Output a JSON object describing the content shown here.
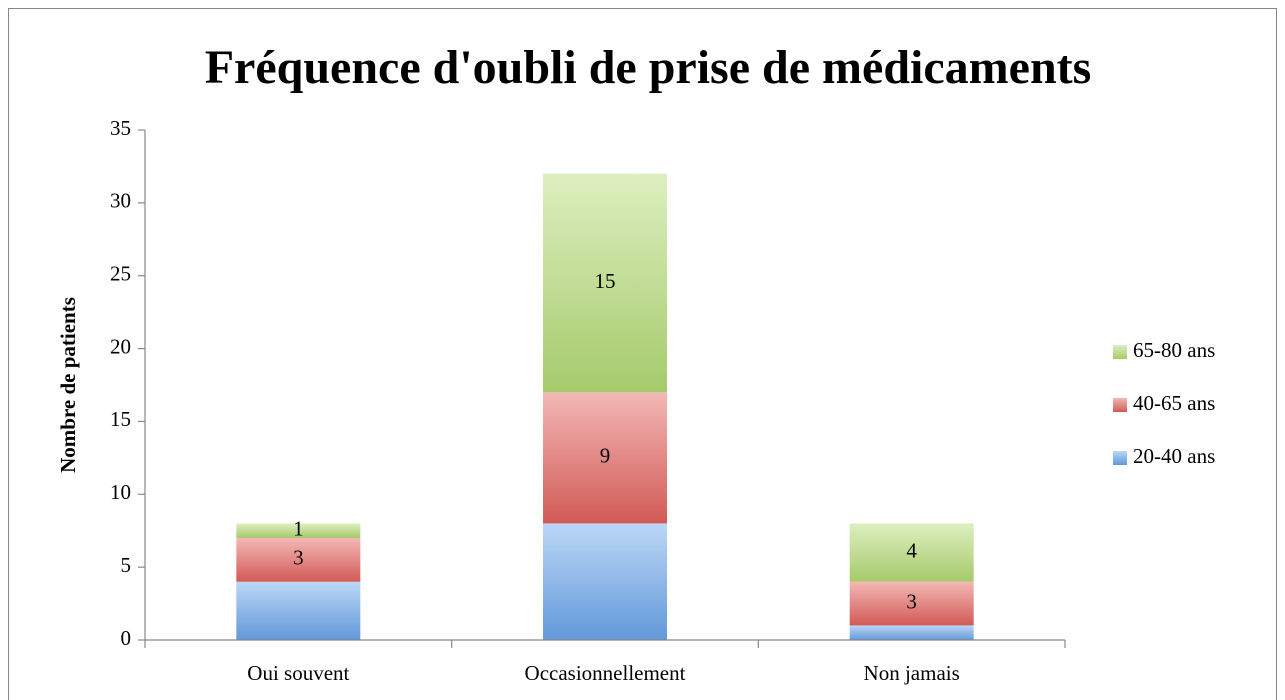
{
  "chart_data": {
    "type": "stacked_bar",
    "title": "Fréquence d'oubli de prise de médicaments",
    "y_label": "Nombre de patients",
    "categories": [
      "Oui souvent",
      "Occasionnellement",
      "Non jamais"
    ],
    "series": [
      {
        "name": "20-40 ans",
        "color": "#6aa6ec",
        "values": [
          4,
          8,
          1
        ],
        "show_labels": false
      },
      {
        "name": "40-65 ans",
        "color": "#e4625d",
        "values": [
          3,
          9,
          3
        ],
        "show_labels": true
      },
      {
        "name": "65-80 ans",
        "color": "#b4dc74",
        "values": [
          1,
          15,
          4
        ],
        "show_labels": true
      }
    ],
    "ylim": [
      0,
      35
    ],
    "yticks": [
      0,
      5,
      10,
      15,
      20,
      25,
      30,
      35
    ],
    "grid": false,
    "legend": "right"
  }
}
